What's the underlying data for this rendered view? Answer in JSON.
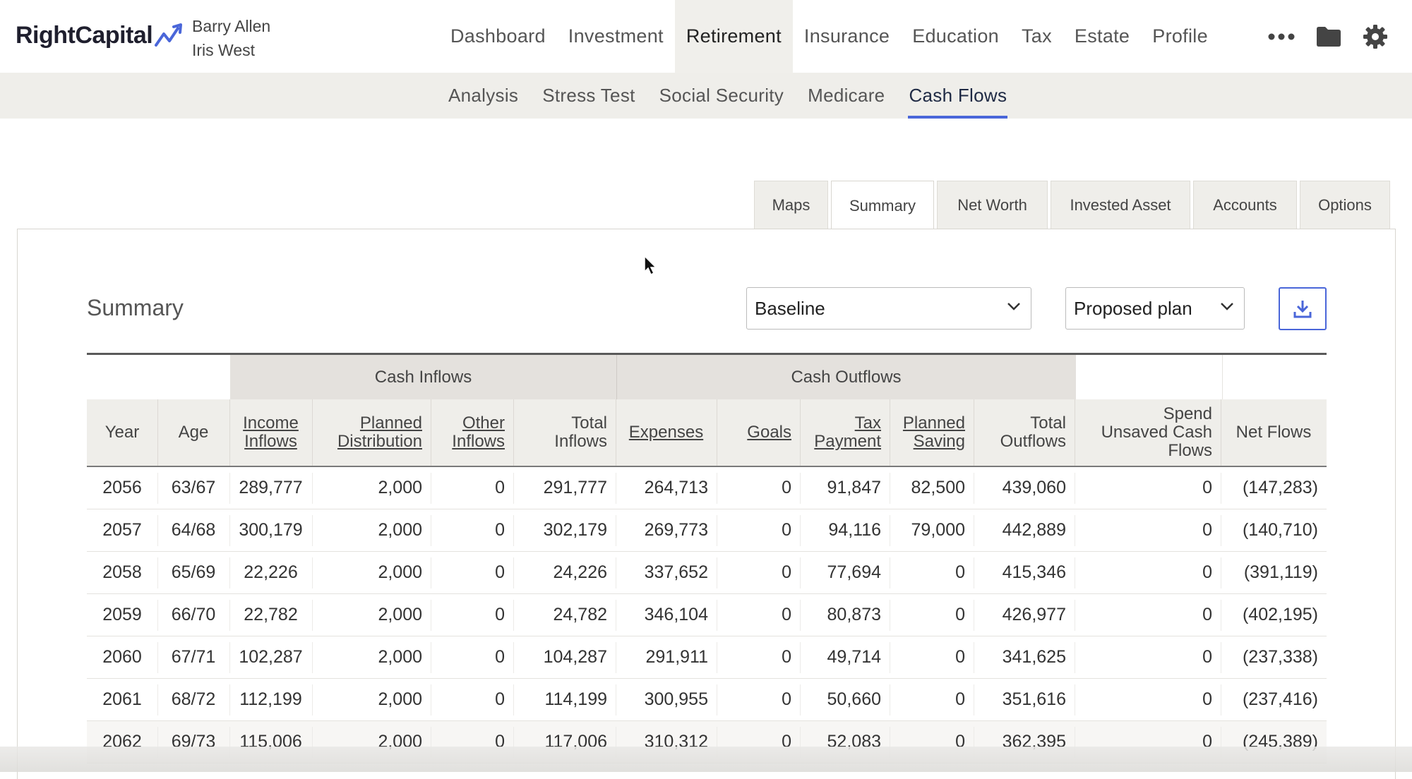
{
  "brand": {
    "name": "RightCapital"
  },
  "clients": [
    "Barry Allen",
    "Iris West"
  ],
  "main_nav": [
    "Dashboard",
    "Investment",
    "Retirement",
    "Insurance",
    "Education",
    "Tax",
    "Estate",
    "Profile"
  ],
  "main_nav_active": "Retirement",
  "top_icons": [
    "more-icon",
    "folder-icon",
    "gear-icon"
  ],
  "sub_nav": [
    "Analysis",
    "Stress Test",
    "Social Security",
    "Medicare",
    "Cash Flows"
  ],
  "sub_nav_active": "Cash Flows",
  "tabs": [
    "Maps",
    "Summary",
    "Net Worth",
    "Invested Asset",
    "Accounts",
    "Options"
  ],
  "tabs_active": "Summary",
  "summary": {
    "title": "Summary",
    "scenario_select": "Baseline",
    "plan_select": "Proposed plan"
  },
  "table": {
    "groups": [
      "Cash Inflows",
      "Cash Outflows"
    ],
    "columns": [
      {
        "label": [
          "Year"
        ],
        "link": false
      },
      {
        "label": [
          "Age"
        ],
        "link": false
      },
      {
        "label": [
          "Income",
          "Inflows"
        ],
        "link": true
      },
      {
        "label": [
          "Planned",
          "Distribution"
        ],
        "link": true
      },
      {
        "label": [
          "Other",
          "Inflows"
        ],
        "link": true
      },
      {
        "label": [
          "Total",
          "Inflows"
        ],
        "link": false
      },
      {
        "label": [
          "Expenses"
        ],
        "link": true
      },
      {
        "label": [
          "Goals"
        ],
        "link": true
      },
      {
        "label": [
          "Tax",
          "Payment"
        ],
        "link": true
      },
      {
        "label": [
          "Planned",
          "Saving"
        ],
        "link": true
      },
      {
        "label": [
          "Total",
          "Outflows"
        ],
        "link": false
      },
      {
        "label": [
          "Spend",
          "Unsaved Cash",
          "Flows"
        ],
        "link": false
      },
      {
        "label": [
          "Net Flows"
        ],
        "link": false
      }
    ],
    "rows": [
      [
        "2056",
        "63/67",
        "289,777",
        "2,000",
        "0",
        "291,777",
        "264,713",
        "0",
        "91,847",
        "82,500",
        "439,060",
        "0",
        "(147,283)"
      ],
      [
        "2057",
        "64/68",
        "300,179",
        "2,000",
        "0",
        "302,179",
        "269,773",
        "0",
        "94,116",
        "79,000",
        "442,889",
        "0",
        "(140,710)"
      ],
      [
        "2058",
        "65/69",
        "22,226",
        "2,000",
        "0",
        "24,226",
        "337,652",
        "0",
        "77,694",
        "0",
        "415,346",
        "0",
        "(391,119)"
      ],
      [
        "2059",
        "66/70",
        "22,782",
        "2,000",
        "0",
        "24,782",
        "346,104",
        "0",
        "80,873",
        "0",
        "426,977",
        "0",
        "(402,195)"
      ],
      [
        "2060",
        "67/71",
        "102,287",
        "2,000",
        "0",
        "104,287",
        "291,911",
        "0",
        "49,714",
        "0",
        "341,625",
        "0",
        "(237,338)"
      ],
      [
        "2061",
        "68/72",
        "112,199",
        "2,000",
        "0",
        "114,199",
        "300,955",
        "0",
        "50,660",
        "0",
        "351,616",
        "0",
        "(237,416)"
      ],
      [
        "2062",
        "69/73",
        "115,006",
        "2,000",
        "0",
        "117,006",
        "310,312",
        "0",
        "52,083",
        "0",
        "362,395",
        "0",
        "(245,389)"
      ]
    ]
  },
  "colors": {
    "accent": "#4a66d9",
    "nav_bg": "#efeeea",
    "group_bg": "#e4e1dd"
  }
}
